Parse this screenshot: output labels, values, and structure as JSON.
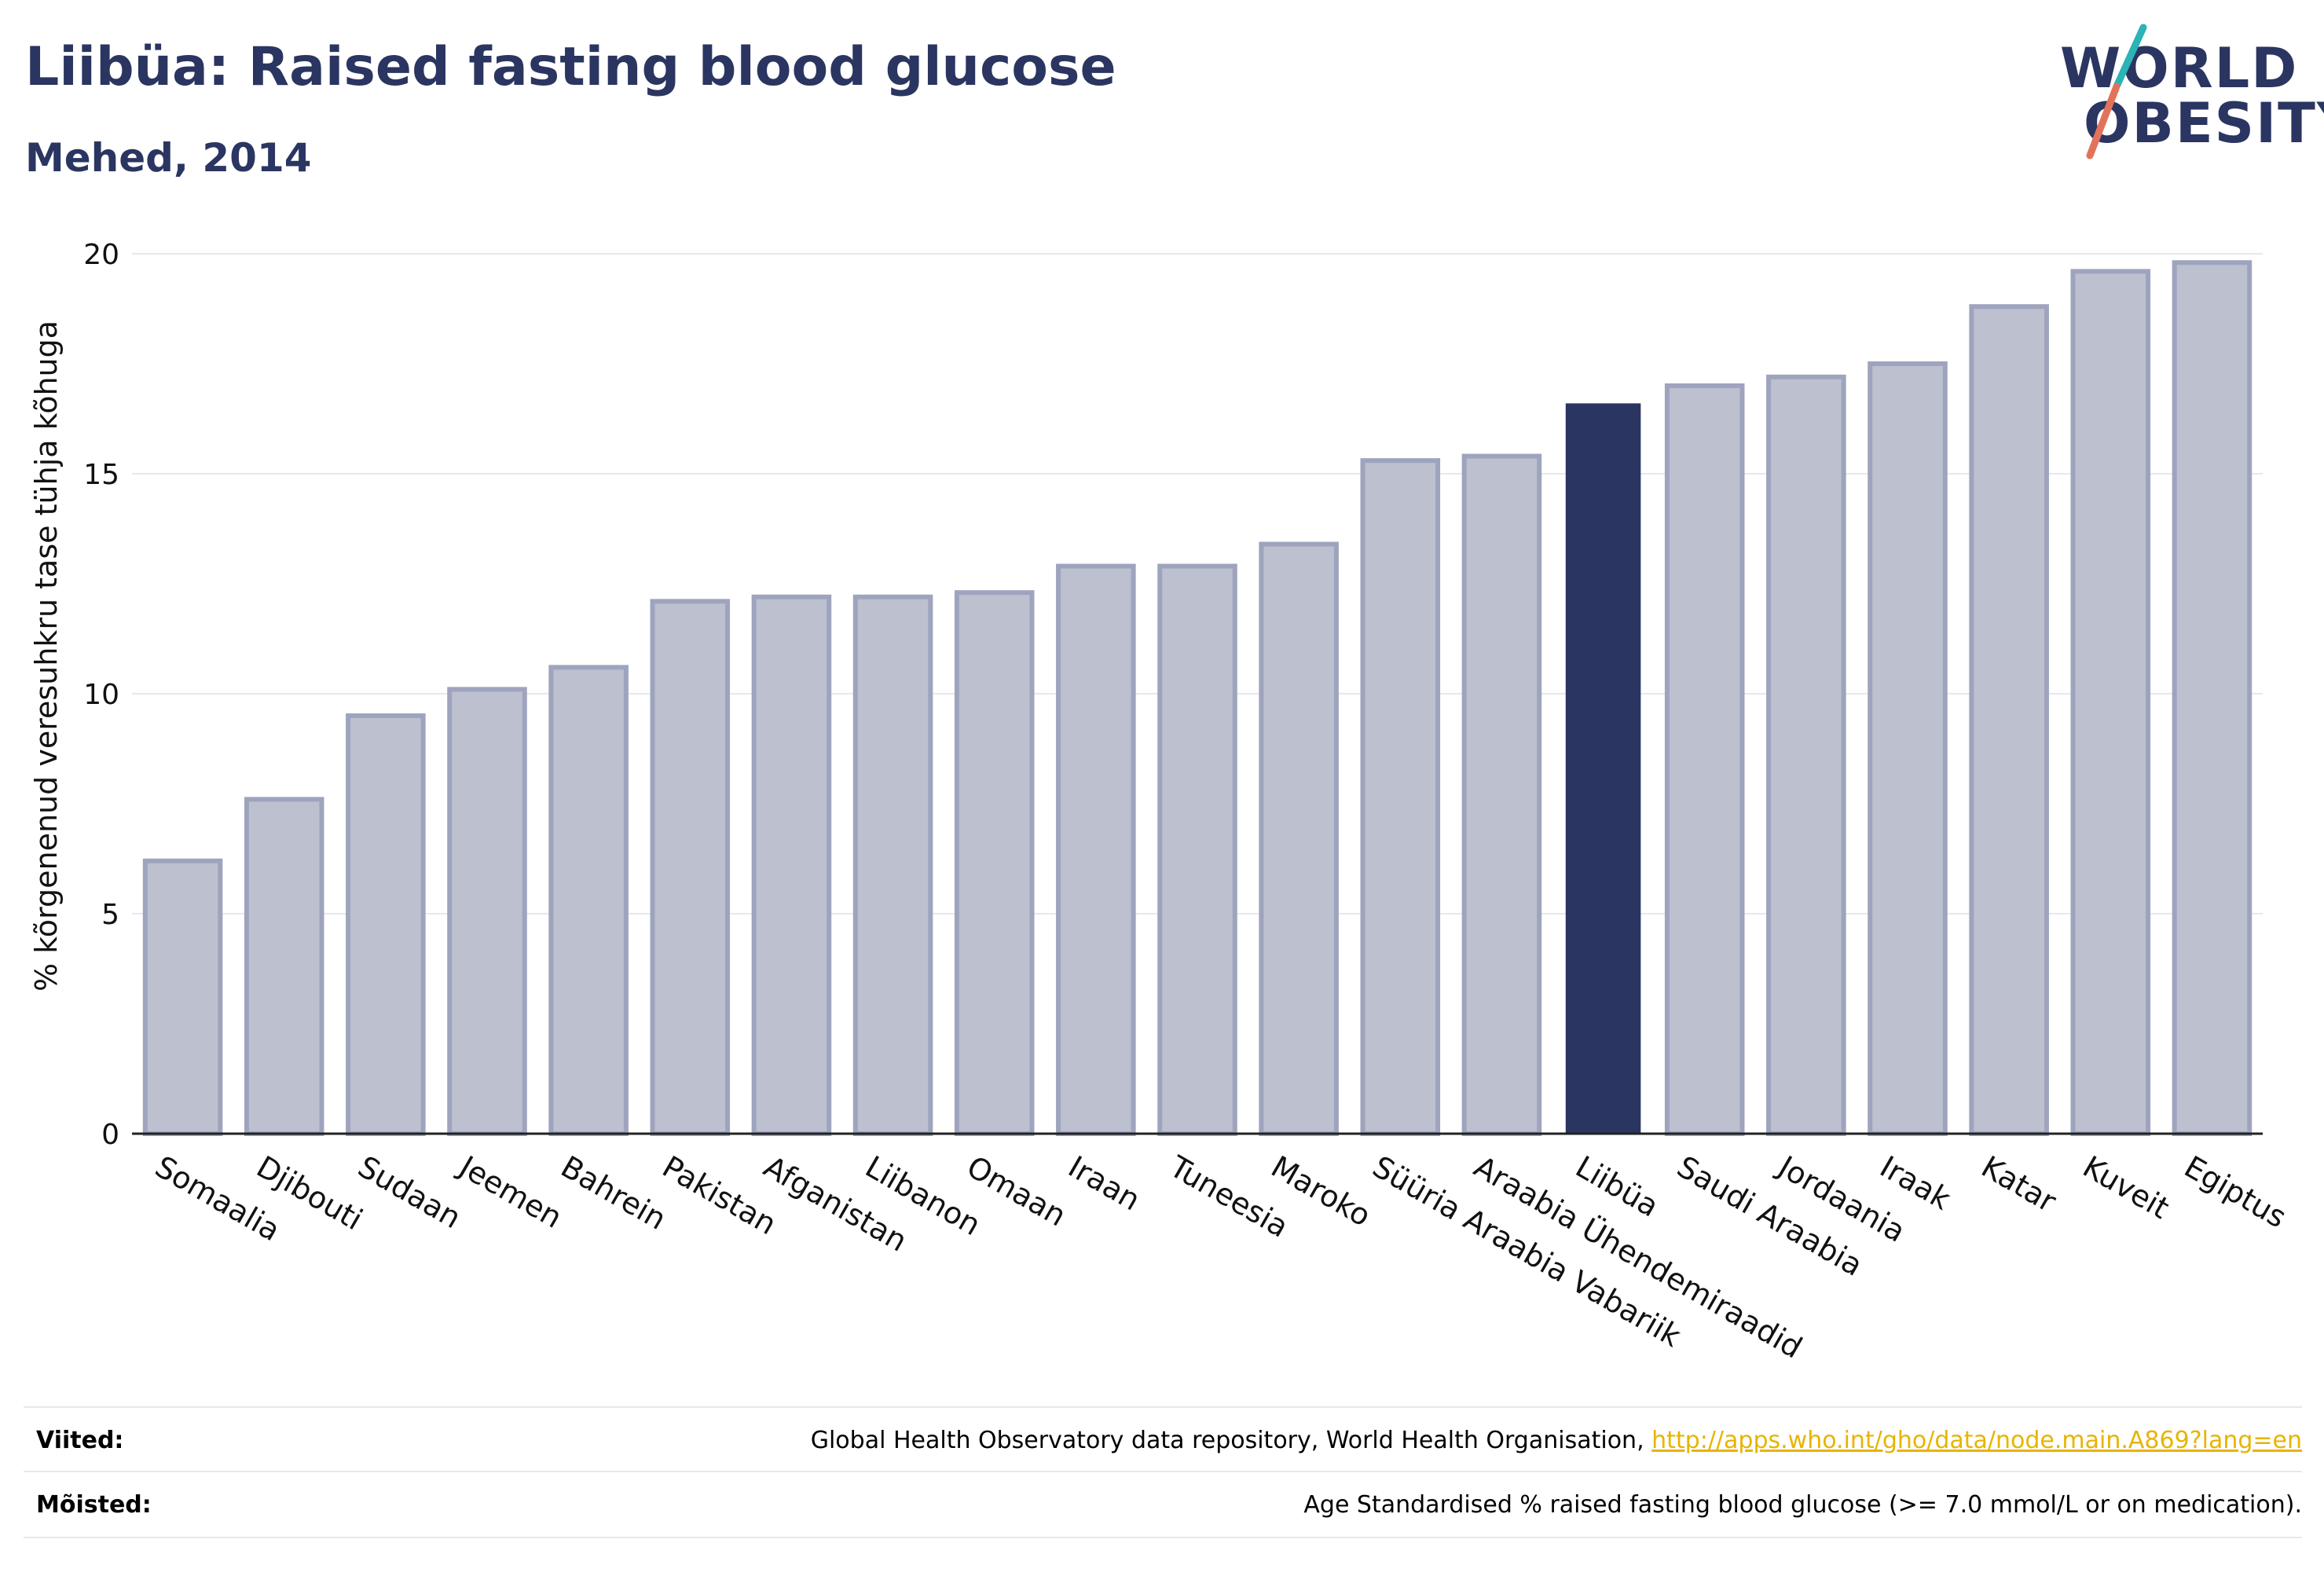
{
  "title": "Liibüa: Raised fasting blood glucose",
  "subtitle": "Mehed, 2014",
  "logo": {
    "line1": "WORLD",
    "line2": "OBESITY",
    "slash_colors": [
      "#2bb3b5",
      "#e2735a"
    ]
  },
  "colors": {
    "highlight": "#2b3561",
    "bar_fill": "#bcc0cf",
    "bar_stroke": "#9ea4bd",
    "grid": "#e6e8ef",
    "title": "#2b3561"
  },
  "chart_data": {
    "type": "bar",
    "ylabel": "% kõrgenenud veresuhkru tase tühja kõhuga",
    "ylim": [
      0,
      20
    ],
    "yticks": [
      0,
      5,
      10,
      15,
      20
    ],
    "grid": true,
    "highlight": "Liibüa",
    "categories": [
      "Somaalia",
      "Djibouti",
      "Sudaan",
      "Jeemen",
      "Bahrein",
      "Pakistan",
      "Afganistan",
      "Liibanon",
      "Omaan",
      "Iraan",
      "Tuneesia",
      "Maroko",
      "Süüria Araabia Vabariik",
      "Araabia Ühendemiraadid",
      "Liibüa",
      "Saudi Araabia",
      "Jordaania",
      "Iraak",
      "Katar",
      "Kuveit",
      "Egiptus"
    ],
    "values": [
      6.2,
      7.6,
      9.5,
      10.1,
      10.6,
      12.1,
      12.2,
      12.2,
      12.3,
      12.9,
      12.9,
      13.4,
      15.3,
      15.4,
      16.6,
      17.0,
      17.2,
      17.5,
      18.8,
      19.6,
      19.8
    ]
  },
  "footer": {
    "sources_label": "Viited:",
    "sources_text": "Global Health Observatory data repository, World Health Organisation, ",
    "sources_link": "http://apps.who.int/gho/data/node.main.A869?lang=en",
    "definitions_label": "Mõisted:",
    "definitions_text": "Age Standardised % raised fasting blood glucose (>= 7.0 mmol/L or on medication)."
  }
}
